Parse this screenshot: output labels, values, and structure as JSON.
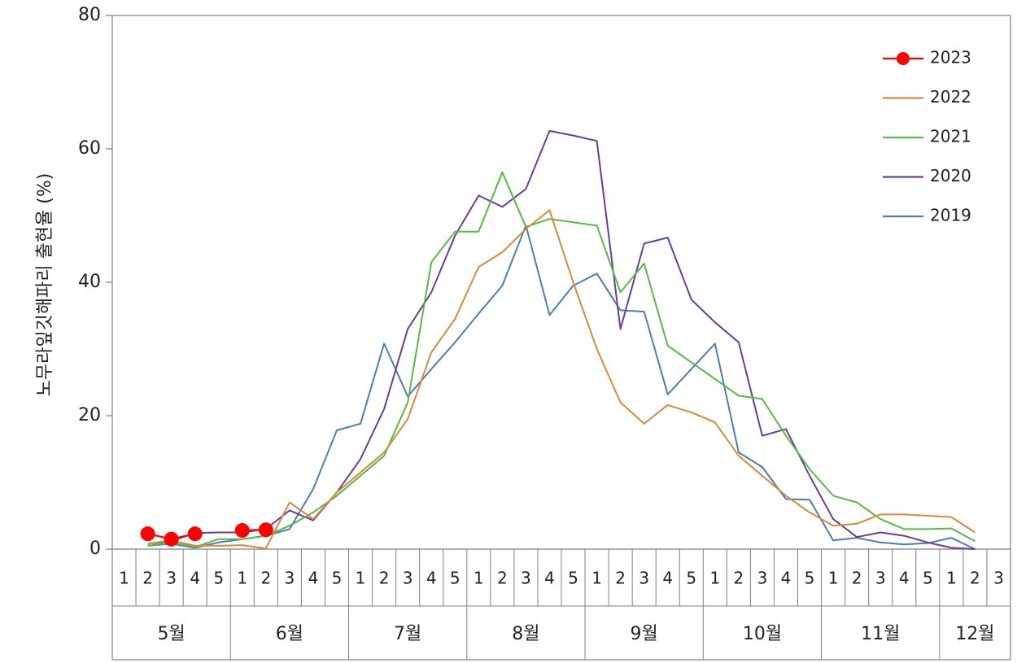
{
  "chart_data": {
    "type": "line",
    "title": "",
    "ylabel": "노무라잎깃해파리 출현율 (%)",
    "ylim": [
      0,
      80
    ],
    "yticks": [
      0,
      20,
      40,
      60,
      80
    ],
    "grid": false,
    "legend_position": "top-right",
    "months": [
      {
        "label": "5월",
        "weeks": [
          "1",
          "2",
          "3",
          "4",
          "5"
        ]
      },
      {
        "label": "6월",
        "weeks": [
          "1",
          "2",
          "3",
          "4",
          "5"
        ]
      },
      {
        "label": "7월",
        "weeks": [
          "1",
          "2",
          "3",
          "4",
          "5"
        ]
      },
      {
        "label": "8월",
        "weeks": [
          "1",
          "2",
          "3",
          "4",
          "5"
        ]
      },
      {
        "label": "9월",
        "weeks": [
          "1",
          "2",
          "3",
          "4",
          "5"
        ]
      },
      {
        "label": "10월",
        "weeks": [
          "1",
          "2",
          "3",
          "4",
          "5"
        ]
      },
      {
        "label": "11월",
        "weeks": [
          "1",
          "2",
          "3",
          "4",
          "5"
        ]
      },
      {
        "label": "12월",
        "weeks": [
          "1",
          "2",
          "3"
        ]
      }
    ],
    "series": [
      {
        "name": "2023",
        "color": "#ff0000",
        "marker": true,
        "values": [
          null,
          2.3,
          1.5,
          2.3,
          null,
          2.8,
          2.9,
          null,
          null,
          null,
          null,
          null,
          null,
          null,
          null,
          null,
          null,
          null,
          null,
          null,
          null,
          null,
          null,
          null,
          null,
          null,
          null,
          null,
          null,
          null,
          null,
          null,
          null,
          null,
          null,
          null,
          null,
          null
        ]
      },
      {
        "name": "2022",
        "color": "#d9893c",
        "marker": false,
        "values": [
          null,
          0.8,
          1.3,
          0.5,
          0.5,
          0.6,
          0.1,
          7.0,
          4.5,
          8.5,
          11.5,
          14.5,
          19.5,
          29.5,
          34.5,
          42.3,
          44.5,
          48.0,
          50.8,
          40.0,
          30.0,
          22.0,
          18.8,
          21.6,
          20.5,
          19.0,
          14.0,
          11.0,
          8.0,
          5.5,
          3.5,
          3.8,
          5.2,
          5.2,
          5.0,
          4.8,
          2.5,
          null
        ]
      },
      {
        "name": "2021",
        "color": "#55bb44",
        "marker": false,
        "values": [
          null,
          0.5,
          1.0,
          0.3,
          1.5,
          1.5,
          2.0,
          3.5,
          5.5,
          8.0,
          11.0,
          14.0,
          22.0,
          43.0,
          47.6,
          47.6,
          56.5,
          48.3,
          49.5,
          49.0,
          48.5,
          38.5,
          42.8,
          30.5,
          28.0,
          25.5,
          23.0,
          22.5,
          17.0,
          12.0,
          8.0,
          7.0,
          4.5,
          3.0,
          3.0,
          3.1,
          1.2,
          null
        ]
      },
      {
        "name": "2020",
        "color": "#6a3d99",
        "marker": false,
        "values": [
          null,
          0.8,
          1.2,
          2.4,
          2.5,
          2.5,
          3.0,
          5.8,
          4.3,
          8.5,
          13.5,
          21.0,
          33.0,
          38.5,
          47.0,
          53.0,
          51.3,
          54.0,
          62.7,
          62.0,
          61.2,
          33.0,
          45.8,
          46.7,
          37.4,
          34.0,
          31.0,
          17.0,
          18.0,
          11.0,
          4.5,
          1.8,
          2.5,
          2.0,
          1.0,
          0.2,
          0.0,
          null
        ]
      },
      {
        "name": "2019",
        "color": "#4a7eb5",
        "marker": false,
        "values": [
          null,
          0.5,
          0.8,
          0.2,
          1.0,
          1.5,
          2.0,
          3.0,
          9.0,
          17.8,
          18.8,
          30.8,
          22.9,
          27.0,
          31.0,
          35.3,
          39.5,
          48.5,
          35.1,
          39.5,
          41.3,
          35.8,
          35.6,
          23.2,
          27.0,
          30.8,
          14.5,
          12.3,
          7.5,
          7.4,
          1.3,
          1.7,
          1.0,
          0.7,
          0.9,
          1.7,
          0.0,
          null
        ]
      }
    ]
  }
}
